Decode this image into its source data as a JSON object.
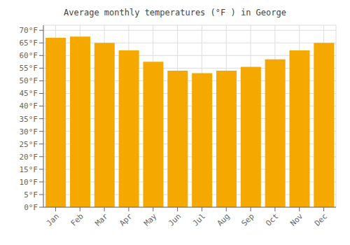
{
  "chart_data": {
    "type": "bar",
    "title": "Average monthly temperatures (°F ) in George",
    "categories": [
      "Jan",
      "Feb",
      "Mar",
      "Apr",
      "May",
      "Jun",
      "Jul",
      "Aug",
      "Sep",
      "Oct",
      "Nov",
      "Dec"
    ],
    "values": [
      67,
      67.5,
      65,
      62,
      57.5,
      54,
      53,
      54,
      55.5,
      58.5,
      62,
      65
    ],
    "color": "#F5A800",
    "ylim": [
      0,
      72
    ],
    "yticks": [
      {
        "value": 0,
        "label": "0°F"
      },
      {
        "value": 5,
        "label": "5°F"
      },
      {
        "value": 10,
        "label": "10°F"
      },
      {
        "value": 15,
        "label": "15°F"
      },
      {
        "value": 20,
        "label": "20°F"
      },
      {
        "value": 25,
        "label": "25°F"
      },
      {
        "value": 30,
        "label": "30°F"
      },
      {
        "value": 35,
        "label": "35°F"
      },
      {
        "value": 40,
        "label": "40°F"
      },
      {
        "value": 45,
        "label": "45°F"
      },
      {
        "value": 50,
        "label": "50°F"
      },
      {
        "value": 55,
        "label": "55°F"
      },
      {
        "value": 60,
        "label": "60°F"
      },
      {
        "value": 65,
        "label": "65°F"
      },
      {
        "value": 70,
        "label": "70°F"
      }
    ],
    "grid": true
  }
}
